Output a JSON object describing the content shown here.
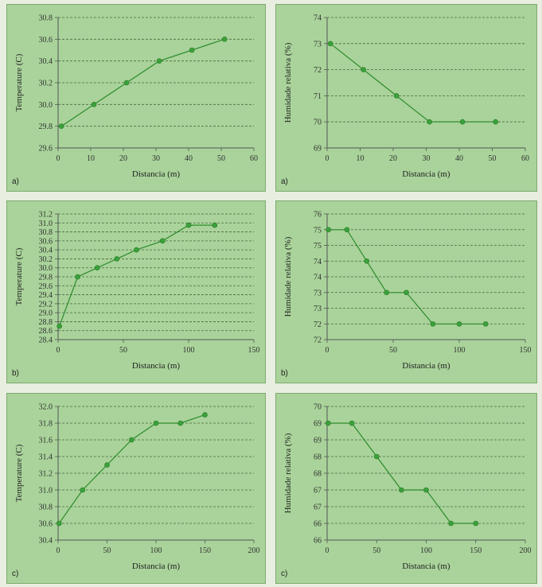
{
  "chart_data": [
    {
      "type": "line",
      "panel_label": "a)",
      "xlabel": "Distancia (m)",
      "ylabel": "Temperature (C)",
      "xlim": [
        0,
        60
      ],
      "ylim": [
        29.6,
        30.8
      ],
      "xticks": [
        "0",
        "10",
        "20",
        "30",
        "40",
        "50",
        "60"
      ],
      "yticks": [
        "29.6",
        "29.8",
        "30.0",
        "30.2",
        "30.4",
        "30.6",
        "30.8"
      ],
      "grid": "horizontal-dashed",
      "series": [
        {
          "x": [
            1,
            11,
            21,
            31,
            41,
            51
          ],
          "values": [
            29.8,
            30.0,
            30.2,
            30.4,
            30.5,
            30.6
          ]
        }
      ]
    },
    {
      "type": "line",
      "panel_label": "a)",
      "xlabel": "Distancia (m)",
      "ylabel": "Humidade relativa (%)",
      "xlim": [
        0,
        60
      ],
      "ylim": [
        69,
        74
      ],
      "xticks": [
        "0",
        "10",
        "20",
        "30",
        "40",
        "50",
        "60"
      ],
      "yticks": [
        "69",
        "70",
        "71",
        "72",
        "73",
        "74"
      ],
      "grid": "horizontal-dashed",
      "series": [
        {
          "x": [
            1,
            11,
            21,
            31,
            41,
            51
          ],
          "values": [
            73,
            72,
            71,
            70,
            70,
            70
          ]
        }
      ]
    },
    {
      "type": "line",
      "panel_label": "b)",
      "xlabel": "Distancia (m)",
      "ylabel": "Temperature (C)",
      "xlim": [
        0,
        150
      ],
      "ylim": [
        28.4,
        31.2
      ],
      "xticks": [
        "0",
        "50",
        "100",
        "150"
      ],
      "yticks": [
        "28.4",
        "28.6",
        "28.8",
        "29.0",
        "29.2",
        "29.4",
        "29.6",
        "29.8",
        "30.0",
        "30.2",
        "30.4",
        "30.6",
        "30.8",
        "31.0",
        "31.2"
      ],
      "grid": "horizontal-dashed",
      "series": [
        {
          "x": [
            1,
            15,
            30,
            45,
            60,
            80,
            100,
            120
          ],
          "values": [
            28.7,
            29.8,
            30.0,
            30.2,
            30.4,
            30.6,
            30.95,
            30.95
          ]
        }
      ]
    },
    {
      "type": "line",
      "panel_label": "b)",
      "xlabel": "Distancia (m)",
      "ylabel": "Humidade relativa (%)",
      "xlim": [
        0,
        150
      ],
      "ylim": [
        72,
        76
      ],
      "xticks": [
        "0",
        "50",
        "100",
        "150"
      ],
      "yticks": [
        "72",
        "72",
        "73",
        "73",
        "74",
        "74",
        "75",
        "75",
        "76"
      ],
      "grid": "horizontal-dashed",
      "series": [
        {
          "x": [
            1,
            15,
            30,
            45,
            60,
            80,
            100,
            120
          ],
          "values": [
            75.5,
            75.5,
            74.5,
            73.5,
            73.5,
            72.5,
            72.5,
            72.5
          ]
        }
      ]
    },
    {
      "type": "line",
      "panel_label": "c)",
      "xlabel": "Distancia (m)",
      "ylabel": "Temperature (C)",
      "xlim": [
        0,
        200
      ],
      "ylim": [
        30.4,
        32.0
      ],
      "xticks": [
        "0",
        "50",
        "100",
        "150",
        "200"
      ],
      "yticks": [
        "30.4",
        "30.6",
        "30.8",
        "31.0",
        "31.2",
        "31.4",
        "31.6",
        "31.8",
        "32.0"
      ],
      "grid": "horizontal-dashed",
      "series": [
        {
          "x": [
            1,
            25,
            50,
            75,
            100,
            125,
            150
          ],
          "values": [
            30.6,
            31.0,
            31.3,
            31.6,
            31.8,
            31.8,
            31.9
          ]
        }
      ]
    },
    {
      "type": "line",
      "panel_label": "c)",
      "xlabel": "Distancia (m)",
      "ylabel": "Humidade relativa (%)",
      "xlim": [
        0,
        200
      ],
      "ylim": [
        66,
        70
      ],
      "xticks": [
        "0",
        "50",
        "100",
        "150",
        "200"
      ],
      "yticks": [
        "66",
        "66",
        "67",
        "67",
        "68",
        "68",
        "69",
        "69",
        "70"
      ],
      "grid": "horizontal-dashed",
      "series": [
        {
          "x": [
            1,
            25,
            50,
            75,
            100,
            125,
            150
          ],
          "values": [
            69.5,
            69.5,
            68.5,
            67.5,
            67.5,
            66.5,
            66.5
          ]
        }
      ]
    }
  ],
  "colors": {
    "panel_bg": "#a9d39a",
    "line": "#2e8b2e",
    "marker": "#3aa23a",
    "grid": "#4a6a40",
    "axis": "#555555"
  }
}
